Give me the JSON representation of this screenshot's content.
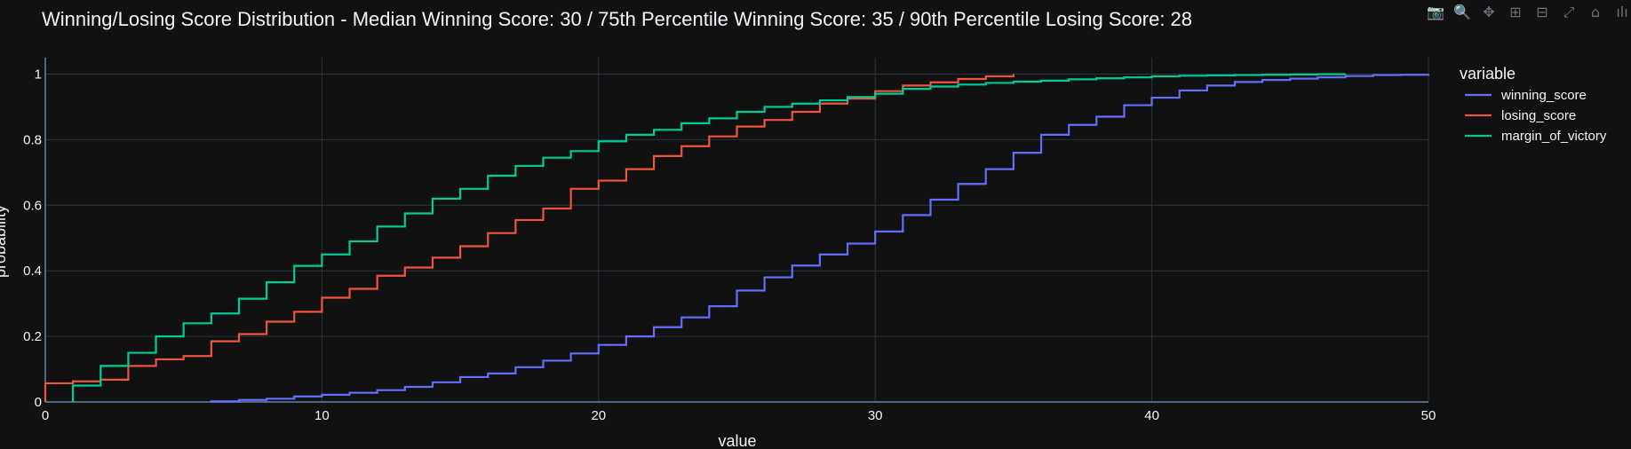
{
  "chart_data": {
    "type": "line",
    "line_shape": "step",
    "title": "Winning/Losing Score Distribution - Median Winning Score: 30 / 75th Percentile Winning Score: 35 / 90th Percentile Losing Score: 28",
    "xlabel": "value",
    "ylabel": "probability",
    "xlim": [
      0,
      50
    ],
    "ylim": [
      0,
      1.05
    ],
    "x_ticks": [
      "0",
      "10",
      "20",
      "30",
      "40",
      "50"
    ],
    "y_ticks": [
      "0",
      "0.2",
      "0.4",
      "0.6",
      "0.8",
      "1"
    ],
    "grid": true,
    "legend_title": "variable",
    "legend_position": "right",
    "series": [
      {
        "name": "winning_score",
        "color": "#636efa",
        "x": [
          6,
          7,
          8,
          9,
          10,
          11,
          12,
          13,
          14,
          15,
          16,
          17,
          18,
          19,
          20,
          21,
          22,
          23,
          24,
          25,
          26,
          27,
          28,
          29,
          30,
          31,
          32,
          33,
          34,
          35,
          36,
          37,
          38,
          39,
          40,
          41,
          42,
          43,
          44,
          45,
          46,
          47,
          48,
          49,
          50
        ],
        "y": [
          0.002,
          0.006,
          0.01,
          0.017,
          0.022,
          0.028,
          0.036,
          0.046,
          0.06,
          0.076,
          0.087,
          0.106,
          0.126,
          0.148,
          0.174,
          0.2,
          0.228,
          0.258,
          0.292,
          0.34,
          0.38,
          0.416,
          0.45,
          0.483,
          0.52,
          0.57,
          0.617,
          0.665,
          0.71,
          0.76,
          0.815,
          0.845,
          0.87,
          0.905,
          0.928,
          0.95,
          0.965,
          0.976,
          0.982,
          0.986,
          0.99,
          0.994,
          0.997,
          0.998,
          1.0
        ]
      },
      {
        "name": "losing_score",
        "color": "#ef553b",
        "x": [
          0,
          1,
          2,
          3,
          4,
          5,
          6,
          7,
          8,
          9,
          10,
          11,
          12,
          13,
          14,
          15,
          16,
          17,
          18,
          19,
          20,
          21,
          22,
          23,
          24,
          25,
          26,
          27,
          28,
          29,
          30,
          31,
          32,
          33,
          34,
          35
        ],
        "y": [
          0.057,
          0.063,
          0.068,
          0.11,
          0.13,
          0.14,
          0.185,
          0.207,
          0.245,
          0.275,
          0.318,
          0.345,
          0.385,
          0.41,
          0.44,
          0.475,
          0.515,
          0.555,
          0.59,
          0.65,
          0.675,
          0.71,
          0.75,
          0.78,
          0.81,
          0.84,
          0.86,
          0.885,
          0.91,
          0.925,
          0.948,
          0.965,
          0.975,
          0.985,
          0.993,
          1.0
        ]
      },
      {
        "name": "margin_of_victory",
        "color": "#00cc96",
        "x": [
          1,
          2,
          3,
          4,
          5,
          6,
          7,
          8,
          9,
          10,
          11,
          12,
          13,
          14,
          15,
          16,
          17,
          18,
          19,
          20,
          21,
          22,
          23,
          24,
          25,
          26,
          27,
          28,
          29,
          30,
          31,
          32,
          33,
          34,
          35,
          36,
          37,
          38,
          39,
          40,
          41,
          42,
          43,
          44,
          45,
          46,
          47
        ],
        "y": [
          0.05,
          0.11,
          0.15,
          0.2,
          0.24,
          0.27,
          0.315,
          0.365,
          0.415,
          0.45,
          0.49,
          0.535,
          0.575,
          0.62,
          0.65,
          0.69,
          0.72,
          0.745,
          0.765,
          0.795,
          0.815,
          0.83,
          0.85,
          0.865,
          0.885,
          0.9,
          0.91,
          0.92,
          0.93,
          0.94,
          0.955,
          0.962,
          0.968,
          0.973,
          0.977,
          0.98,
          0.984,
          0.987,
          0.99,
          0.993,
          0.995,
          0.996,
          0.997,
          0.998,
          0.999,
          0.9995,
          1.0
        ]
      }
    ]
  },
  "modebar": {
    "buttons": [
      {
        "icon": "camera-icon",
        "glyph": "📷"
      },
      {
        "icon": "zoom-icon",
        "glyph": "🔍"
      },
      {
        "icon": "pan-icon",
        "glyph": "✥"
      },
      {
        "icon": "zoom-in-icon",
        "glyph": "⊞"
      },
      {
        "icon": "zoom-out-icon",
        "glyph": "⊟"
      },
      {
        "icon": "autoscale-icon",
        "glyph": "⤢"
      },
      {
        "icon": "reset-axes-icon",
        "glyph": "⌂"
      },
      {
        "icon": "plotly-logo-icon",
        "glyph": "ılı"
      }
    ]
  }
}
